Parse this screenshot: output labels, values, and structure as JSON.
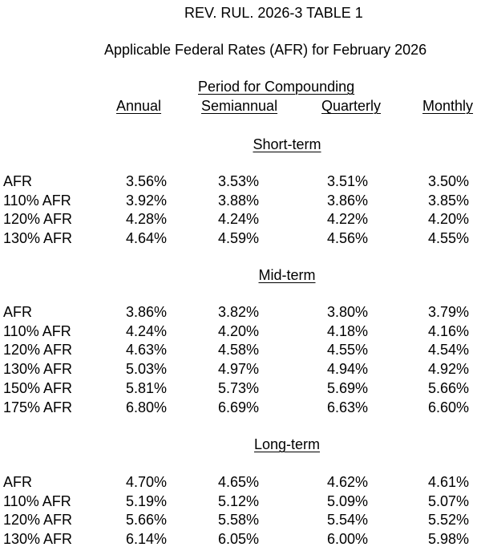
{
  "title": "REV. RUL. 2026-3 TABLE 1",
  "subtitle": "Applicable Federal Rates (AFR) for February 2026",
  "period_header": "Period for Compounding",
  "columns": [
    "Annual",
    "Semiannual",
    "Quarterly",
    "Monthly"
  ],
  "sections": [
    {
      "name": "Short-term",
      "rows": [
        {
          "label": "AFR",
          "values": [
            "3.56%",
            "3.53%",
            "3.51%",
            "3.50%"
          ]
        },
        {
          "label": "110% AFR",
          "values": [
            "3.92%",
            "3.88%",
            "3.86%",
            "3.85%"
          ]
        },
        {
          "label": "120% AFR",
          "values": [
            "4.28%",
            "4.24%",
            "4.22%",
            "4.20%"
          ]
        },
        {
          "label": "130% AFR",
          "values": [
            "4.64%",
            "4.59%",
            "4.56%",
            "4.55%"
          ]
        }
      ]
    },
    {
      "name": "Mid-term",
      "rows": [
        {
          "label": "AFR",
          "values": [
            "3.86%",
            "3.82%",
            "3.80%",
            "3.79%"
          ]
        },
        {
          "label": "110% AFR",
          "values": [
            "4.24%",
            "4.20%",
            "4.18%",
            "4.16%"
          ]
        },
        {
          "label": "120% AFR",
          "values": [
            "4.63%",
            "4.58%",
            "4.55%",
            "4.54%"
          ]
        },
        {
          "label": "130% AFR",
          "values": [
            "5.03%",
            "4.97%",
            "4.94%",
            "4.92%"
          ]
        },
        {
          "label": "150% AFR",
          "values": [
            "5.81%",
            "5.73%",
            "5.69%",
            "5.66%"
          ]
        },
        {
          "label": "175% AFR",
          "values": [
            "6.80%",
            "6.69%",
            "6.63%",
            "6.60%"
          ]
        }
      ]
    },
    {
      "name": "Long-term",
      "rows": [
        {
          "label": "AFR",
          "values": [
            "4.70%",
            "4.65%",
            "4.62%",
            "4.61%"
          ]
        },
        {
          "label": "110% AFR",
          "values": [
            "5.19%",
            "5.12%",
            "5.09%",
            "5.07%"
          ]
        },
        {
          "label": "120% AFR",
          "values": [
            "5.66%",
            "5.58%",
            "5.54%",
            "5.52%"
          ]
        },
        {
          "label": "130% AFR",
          "values": [
            "6.14%",
            "6.05%",
            "6.00%",
            "5.98%"
          ]
        }
      ]
    }
  ]
}
